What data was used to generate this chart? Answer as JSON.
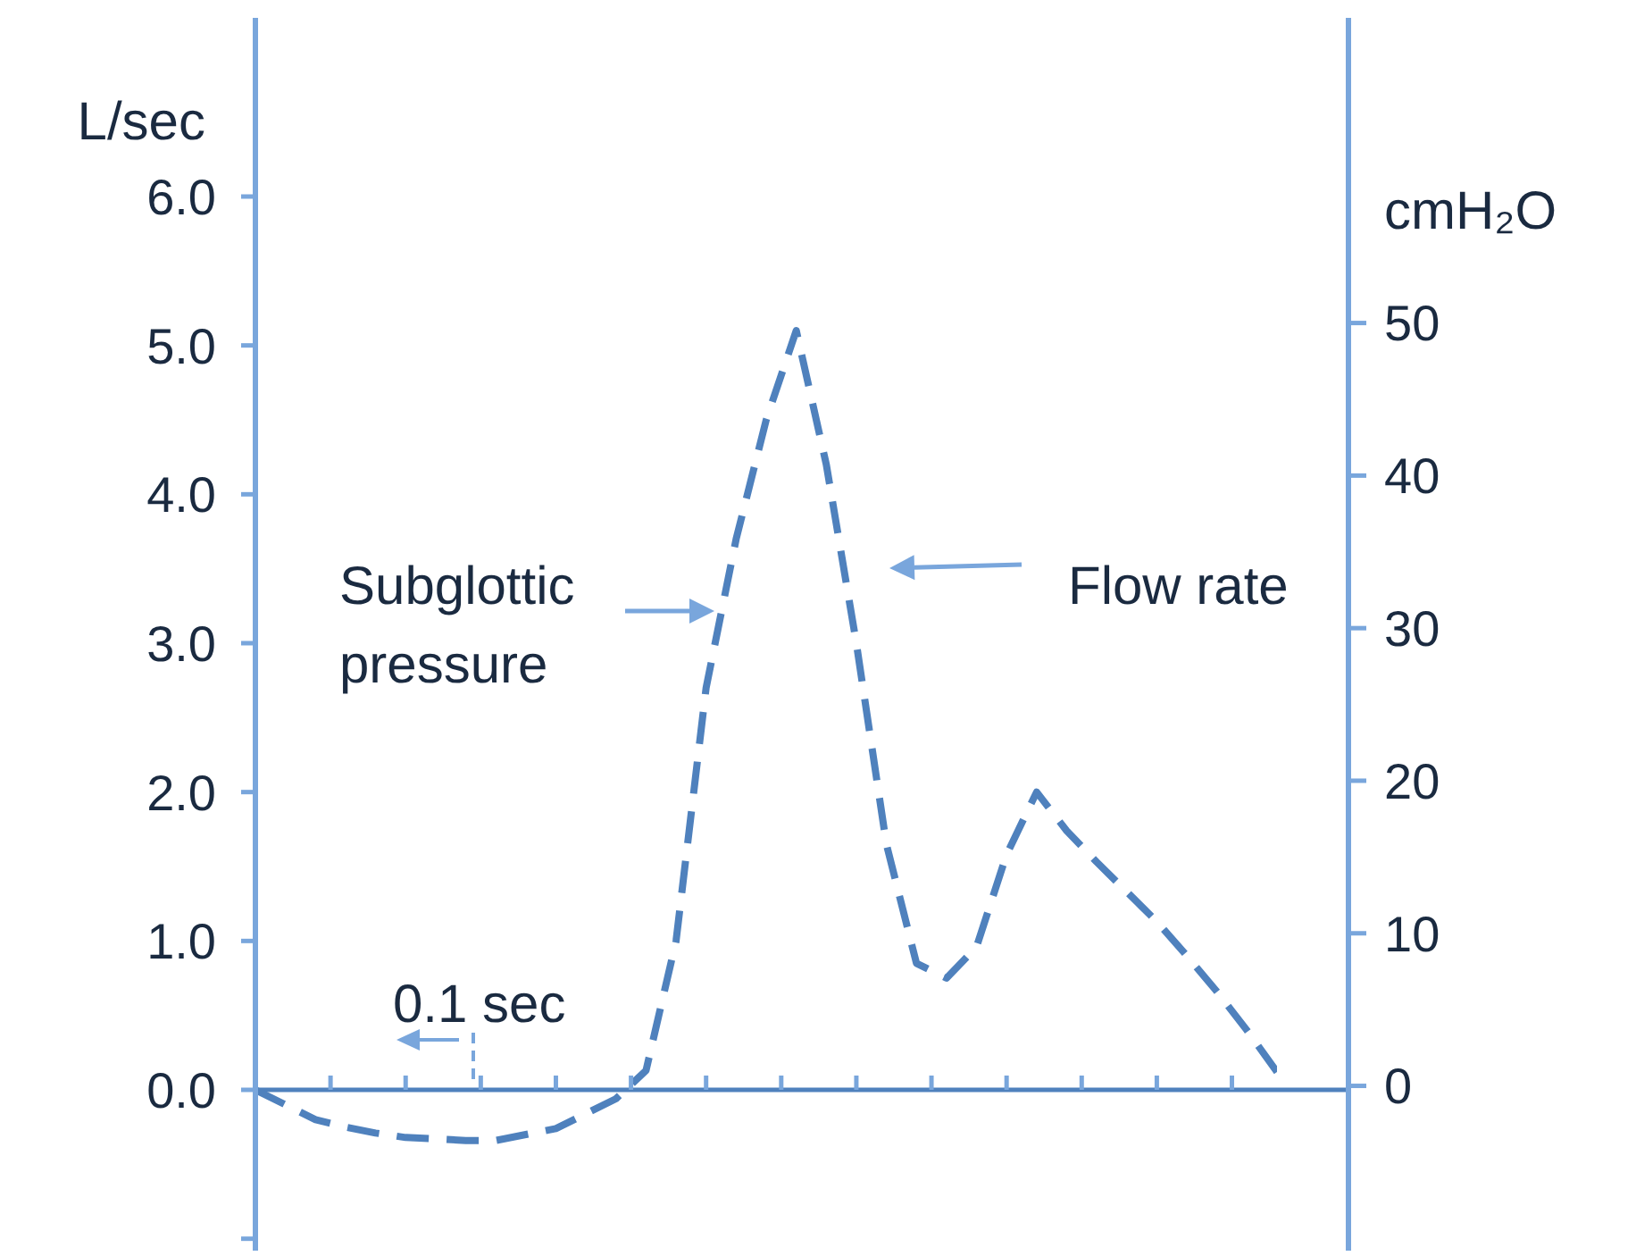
{
  "chart_data": {
    "type": "line",
    "ylabel": "L/sec",
    "y2label": "cmH₂O",
    "categories": [
      null,
      null,
      null,
      null,
      null,
      null,
      null,
      null,
      null,
      null,
      null,
      null,
      null,
      null,
      null,
      null,
      null,
      null,
      null,
      null,
      null,
      null,
      null,
      null,
      null,
      null,
      null,
      null,
      null,
      null,
      null,
      null,
      null,
      null,
      null
    ],
    "series": [
      {
        "color": "#4f81bd",
        "values": [
          0,
          -0.1,
          -0.2,
          -0.25,
          -0.29,
          -0.32,
          -0.33,
          -0.34,
          -0.34,
          -0.3,
          -0.26,
          -0.16,
          -0.06,
          0.13,
          1.0,
          2.7,
          3.7,
          4.5,
          5.1,
          4.2,
          3.0,
          1.65,
          0.85,
          0.75,
          0.96,
          1.58,
          2.0,
          1.74,
          1.53,
          1.33,
          1.13,
          0.9,
          0.66,
          0.4,
          0.12
        ]
      }
    ],
    "line_style": "dashed",
    "marker": "none",
    "tick_labels": "y",
    "ylim": [
      -1.08,
      7.2
    ],
    "yticks": [
      {
        "value": -1,
        "label": null
      },
      {
        "value": 0,
        "label": "0.0"
      },
      {
        "value": 1,
        "label": "1.0"
      },
      {
        "value": 2,
        "label": "2.0"
      },
      {
        "value": 3,
        "label": "3.0"
      },
      {
        "value": 4,
        "label": "4.0"
      },
      {
        "value": 5,
        "label": "5.0"
      },
      {
        "value": 6,
        "label": "6.0"
      }
    ],
    "y2lim": [
      -10.8,
      70
    ],
    "y2ticks": [
      0,
      10,
      20,
      30,
      40,
      50
    ],
    "ref_lines": [
      {
        "axis": "y",
        "value": 0,
        "color": "#4f81bd"
      }
    ],
    "annotations": [
      "Subglottic pressure",
      "Flow rate",
      "0.1 sec"
    ]
  }
}
